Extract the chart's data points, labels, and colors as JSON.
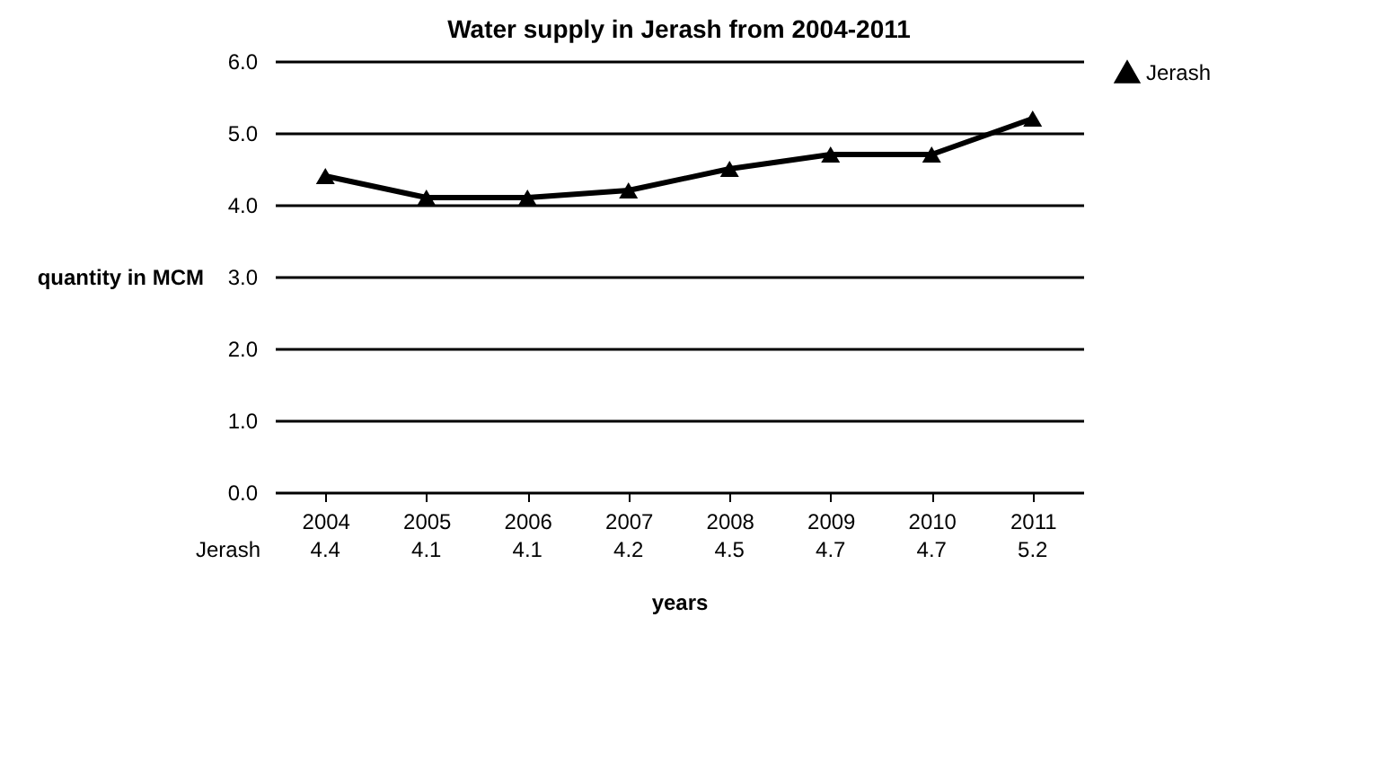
{
  "chart_data": {
    "type": "line",
    "title": "Water supply in Jerash from 2004-2011",
    "xlabel": "years",
    "ylabel": "quantity in MCM",
    "categories": [
      "2004",
      "2005",
      "2006",
      "2007",
      "2008",
      "2009",
      "2010",
      "2011"
    ],
    "series": [
      {
        "name": "Jerash",
        "color": "#000000",
        "values": [
          4.4,
          4.1,
          4.1,
          4.2,
          4.5,
          4.7,
          4.7,
          5.2
        ]
      }
    ],
    "ylim": [
      0,
      6
    ],
    "yticks": [
      {
        "value": 0,
        "label": "0.0"
      },
      {
        "value": 1,
        "label": "1.0"
      },
      {
        "value": 2,
        "label": "2.0"
      },
      {
        "value": 3,
        "label": "3.0"
      },
      {
        "value": 4,
        "label": "4.0"
      },
      {
        "value": 5,
        "label": "5.0"
      },
      {
        "value": 6,
        "label": "6.0"
      }
    ],
    "grid": "y",
    "legend": "right",
    "marker": "triangle",
    "line_style": "solid",
    "data_labels": true
  }
}
